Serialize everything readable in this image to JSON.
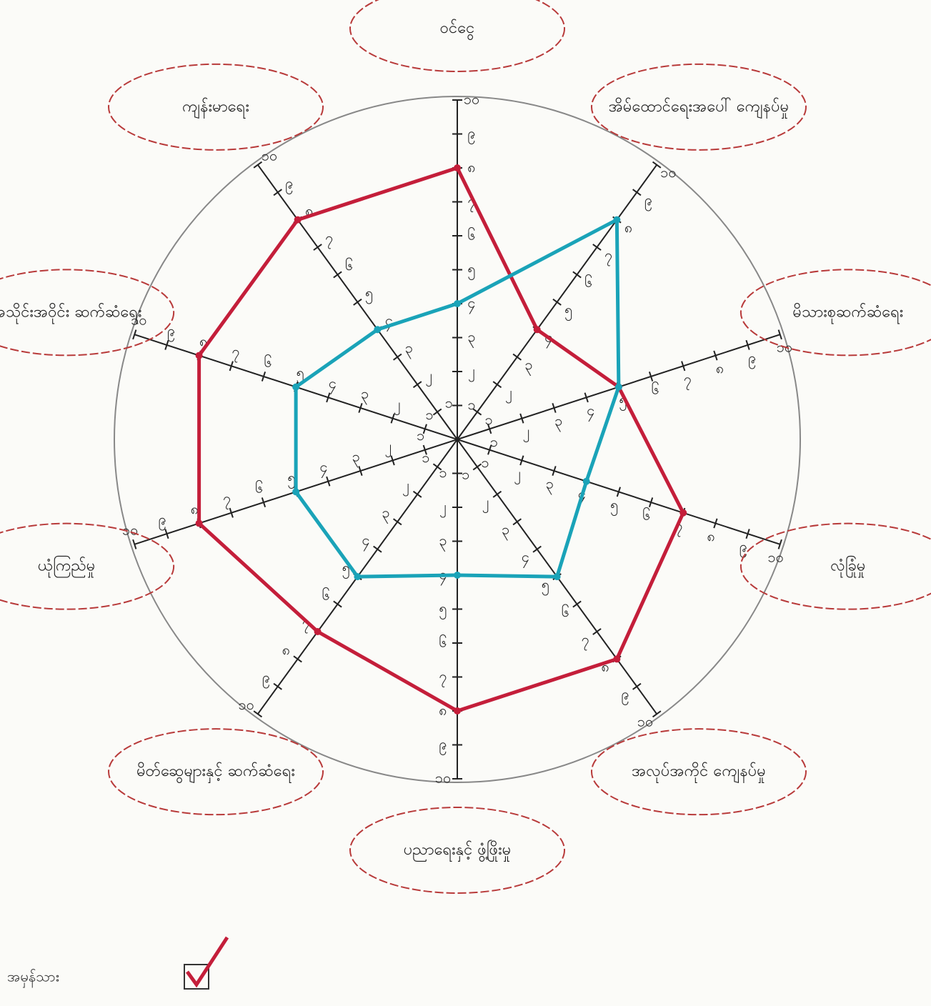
{
  "chart_data": {
    "type": "radar",
    "categories": [
      "ဝင်ငွေ",
      "အိမ်ထောင်ရေးအပေါ် ကျေနပ်မှု",
      "မိသားစုဆက်ဆံရေး",
      "လုံခြုံမှု",
      "အလုပ်အကိုင် ကျေနပ်မှု",
      "ပညာရေးနှင့် ဖွံ့ဖြိုးမှု",
      "မိတ်ဆွေများနှင့် ဆက်ဆံရေး",
      "ယုံကြည်မှု",
      "အသိုင်းအဝိုင်း ဆက်ဆံရေး",
      "ကျန်းမာရေး"
    ],
    "series": [
      {
        "name": "အမှန်သား",
        "color": "#c41e3a",
        "values": [
          8,
          4,
          5,
          7,
          8,
          8,
          7,
          8,
          8,
          8
        ]
      },
      {
        "color": "#1aa3b8",
        "values": [
          4,
          8,
          5,
          4,
          5,
          4,
          5,
          5,
          5,
          4
        ]
      }
    ],
    "ylim": [
      0,
      10
    ],
    "yticks": [
      {
        "value": 1,
        "label": "၁"
      },
      {
        "value": 2,
        "label": "၂"
      },
      {
        "value": 3,
        "label": "၃"
      },
      {
        "value": 4,
        "label": "၄"
      },
      {
        "value": 5,
        "label": "၅"
      },
      {
        "value": 6,
        "label": "၆"
      },
      {
        "value": 7,
        "label": "၇"
      },
      {
        "value": 8,
        "label": "၈"
      },
      {
        "value": 9,
        "label": "၉"
      },
      {
        "value": 10,
        "label": "၁၀"
      }
    ]
  }
}
